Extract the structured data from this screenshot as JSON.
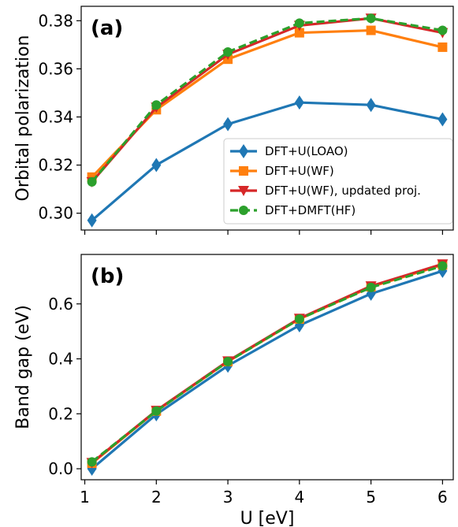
{
  "chart_data": [
    {
      "type": "line",
      "panel_label": "(a)",
      "ylabel": "Orbital polarization",
      "xlim": [
        0.95,
        6.15
      ],
      "ylim": [
        0.293,
        0.386
      ],
      "yticks": [
        0.3,
        0.32,
        0.34,
        0.36,
        0.38
      ],
      "yticklabels": [
        "0.30",
        "0.32",
        "0.34",
        "0.36",
        "0.38"
      ],
      "xticks": [
        1,
        2,
        3,
        4,
        5,
        6
      ],
      "legend": "lower-right",
      "series": [
        {
          "name": "DFT+U(LOAO)",
          "color": "#1f77b4",
          "marker": "diamond",
          "dashed": false,
          "x": [
            1.1,
            2,
            3,
            4,
            5,
            6
          ],
          "y": [
            0.297,
            0.32,
            0.337,
            0.346,
            0.345,
            0.339
          ]
        },
        {
          "name": "DFT+U(WF)",
          "color": "#ff7f0e",
          "marker": "square",
          "dashed": false,
          "x": [
            1.1,
            2,
            3,
            4,
            5,
            6
          ],
          "y": [
            0.315,
            0.343,
            0.364,
            0.375,
            0.376,
            0.369
          ]
        },
        {
          "name": "DFT+U(WF), updated proj.",
          "color": "#d62728",
          "marker": "triangle-down",
          "dashed": false,
          "x": [
            1.1,
            2,
            3,
            4,
            5,
            6
          ],
          "y": [
            0.313,
            0.344,
            0.366,
            0.378,
            0.381,
            0.375
          ]
        },
        {
          "name": "DFT+DMFT(HF)",
          "color": "#2ca02c",
          "marker": "circle",
          "dashed": true,
          "x": [
            1.1,
            2,
            3,
            4,
            5,
            6
          ],
          "y": [
            0.313,
            0.345,
            0.367,
            0.379,
            0.381,
            0.376
          ]
        }
      ]
    },
    {
      "type": "line",
      "panel_label": "(b)",
      "ylabel": "Band gap (eV)",
      "xlabel": "U [eV]",
      "xlim": [
        0.95,
        6.15
      ],
      "ylim": [
        -0.04,
        0.78
      ],
      "yticks": [
        0.0,
        0.2,
        0.4,
        0.6
      ],
      "yticklabels": [
        "0.0",
        "0.2",
        "0.4",
        "0.6"
      ],
      "xticks": [
        1,
        2,
        3,
        4,
        5,
        6
      ],
      "xticklabels": [
        "1",
        "2",
        "3",
        "4",
        "5",
        "6"
      ],
      "series": [
        {
          "name": "DFT+U(LOAO)",
          "color": "#1f77b4",
          "marker": "diamond",
          "dashed": false,
          "x": [
            1.1,
            2,
            3,
            4,
            5,
            6
          ],
          "y": [
            0.0,
            0.198,
            0.375,
            0.522,
            0.637,
            0.72
          ]
        },
        {
          "name": "DFT+U(WF)",
          "color": "#ff7f0e",
          "marker": "square",
          "dashed": false,
          "x": [
            1.1,
            2,
            3,
            4,
            5,
            6
          ],
          "y": [
            0.02,
            0.21,
            0.39,
            0.545,
            0.662,
            0.742
          ]
        },
        {
          "name": "DFT+U(WF), updated proj.",
          "color": "#d62728",
          "marker": "triangle-down",
          "dashed": false,
          "x": [
            1.1,
            2,
            3,
            4,
            5,
            6
          ],
          "y": [
            0.022,
            0.212,
            0.392,
            0.547,
            0.665,
            0.745
          ]
        },
        {
          "name": "DFT+DMFT(HF)",
          "color": "#2ca02c",
          "marker": "circle",
          "dashed": true,
          "x": [
            1.1,
            2,
            3,
            4,
            5,
            6
          ],
          "y": [
            0.025,
            0.21,
            0.39,
            0.545,
            0.66,
            0.738
          ]
        }
      ]
    }
  ]
}
